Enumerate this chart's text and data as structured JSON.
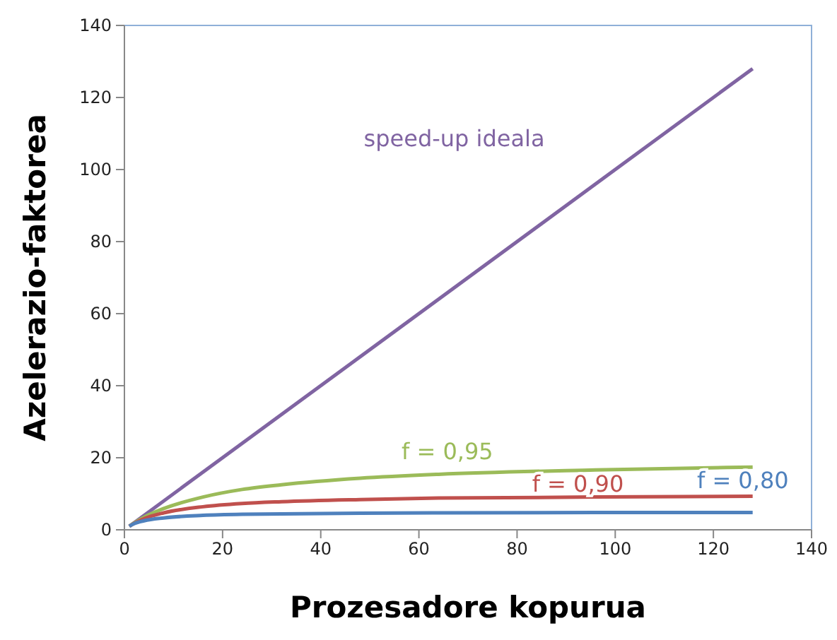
{
  "chart_data": {
    "type": "line",
    "xlabel": "Prozesadore kopurua",
    "ylabel": "Azelerazio-faktorea",
    "xlim": [
      0,
      140
    ],
    "ylim": [
      0,
      140
    ],
    "xticks": [
      0,
      20,
      40,
      60,
      80,
      100,
      120,
      140
    ],
    "yticks": [
      0,
      20,
      40,
      60,
      80,
      100,
      120,
      140
    ],
    "grid": false,
    "marker": "none",
    "line_style": "solid",
    "series": [
      {
        "name": "speed-up ideala",
        "color": "#8064a2",
        "x": [
          1,
          128
        ],
        "values": [
          1,
          128
        ]
      },
      {
        "name": "f = 0,95",
        "color": "#9bbb59",
        "x": [
          1,
          2,
          4,
          8,
          16,
          24,
          32,
          48,
          64,
          96,
          128
        ],
        "values": [
          1,
          1.9,
          3.5,
          5.9,
          9.1,
          11.2,
          12.5,
          14.3,
          15.4,
          16.6,
          17.4
        ]
      },
      {
        "name": "f = 0,90",
        "color": "#c0504d",
        "x": [
          1,
          2,
          4,
          8,
          16,
          24,
          32,
          48,
          64,
          96,
          128
        ],
        "values": [
          1,
          1.8,
          3.1,
          4.7,
          6.4,
          7.3,
          7.8,
          8.4,
          8.8,
          9.1,
          9.3
        ]
      },
      {
        "name": "f = 0,80",
        "color": "#4f81bd",
        "x": [
          1,
          2,
          4,
          8,
          16,
          24,
          32,
          48,
          64,
          96,
          128
        ],
        "values": [
          1,
          1.7,
          2.5,
          3.3,
          4,
          4.3,
          4.4,
          4.6,
          4.7,
          4.8,
          4.8
        ]
      }
    ]
  }
}
